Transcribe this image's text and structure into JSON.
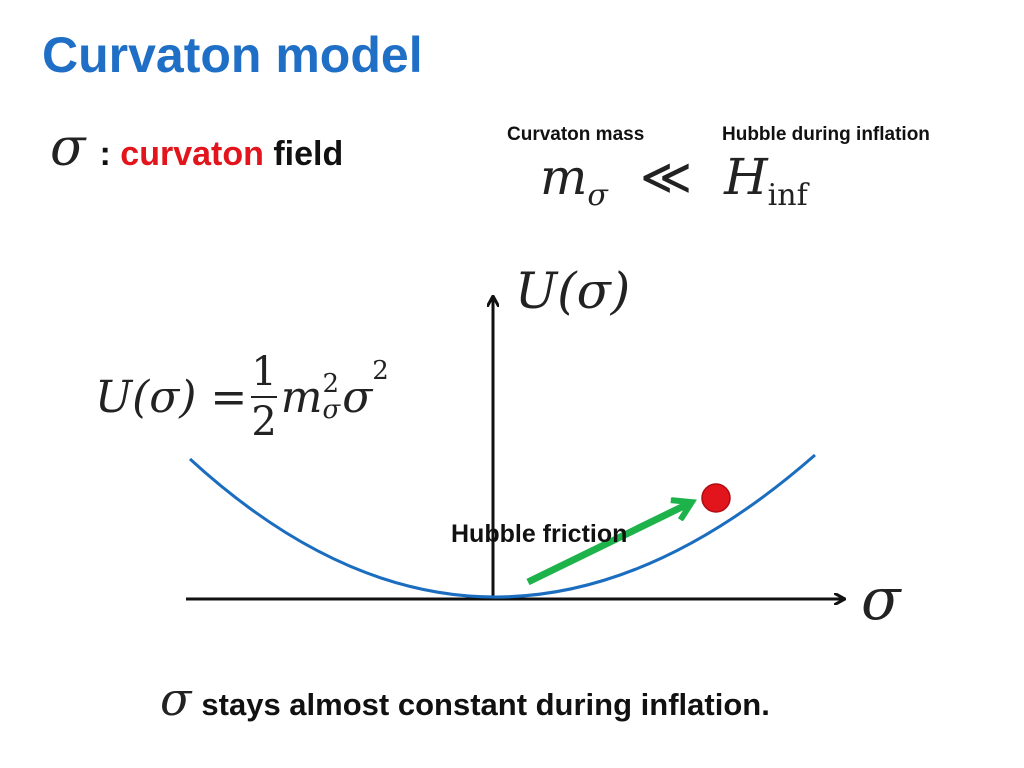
{
  "slide": {
    "title": "Curvaton model",
    "field_line": {
      "symbol": "σ",
      "colon": ":",
      "highlight_word": "curvaton",
      "rest_word": "field",
      "highlight_color": "#e2141c"
    },
    "mass_label": "Curvaton mass",
    "hubble_label": "Hubble during inflation",
    "inequality": {
      "lhs": "m",
      "lhs_sub": "σ",
      "relation": "≪",
      "rhs": "H",
      "rhs_sub": "inf"
    },
    "potential_formula": {
      "lhs": "U(σ) =",
      "numerator": "1",
      "denominator": "2",
      "m": "m",
      "m_sup": "2",
      "m_sub": "σ",
      "sigma": "σ",
      "sigma_sup": "2"
    },
    "y_axis_label": "U(σ)",
    "x_axis_label": "σ",
    "friction_label": "Hubble friction",
    "bottom_statement": {
      "symbol": "σ",
      "text": "stays almost constant during inflation."
    }
  },
  "colors": {
    "title": "#1f6fc6",
    "curve": "#1a6dbf",
    "arrow_green": "#1db34a",
    "ball_red": "#e2141c"
  }
}
